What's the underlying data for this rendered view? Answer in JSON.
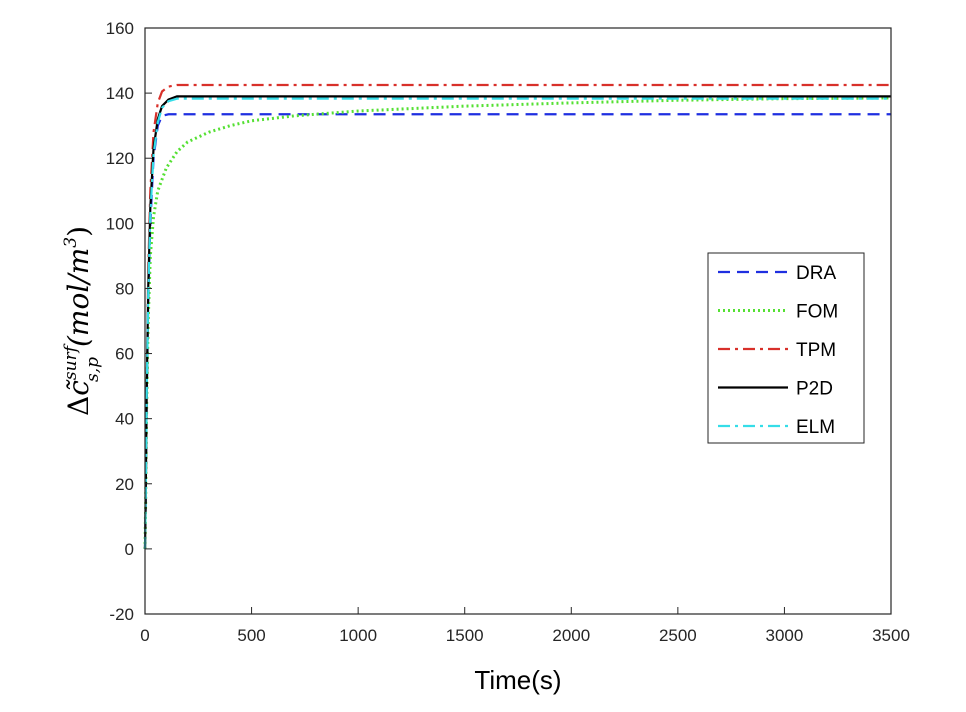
{
  "chart_data": {
    "type": "line",
    "title": "",
    "xlabel": "Time(s)",
    "ylabel": {
      "delta": "Δ",
      "c": "c̃",
      "sup": "surf",
      "sub": "s,p",
      "unit": "(mol/m",
      "unit_exp": "3",
      "unit_close": ")"
    },
    "xlim": [
      0,
      3500
    ],
    "ylim": [
      -20,
      160
    ],
    "xticks": [
      0,
      500,
      1000,
      1500,
      2000,
      2500,
      3000,
      3500
    ],
    "yticks": [
      -20,
      0,
      20,
      40,
      60,
      80,
      100,
      120,
      140,
      160
    ],
    "grid": false,
    "legend_position": "right",
    "series": [
      {
        "name": "DRA",
        "color": "#1f2fe0",
        "style": "dashed",
        "points": [
          [
            0,
            0
          ],
          [
            3,
            14
          ],
          [
            8,
            45
          ],
          [
            15,
            75
          ],
          [
            25,
            100
          ],
          [
            40,
            120
          ],
          [
            60,
            130
          ],
          [
            80,
            133
          ],
          [
            110,
            133.5
          ],
          [
            3500,
            133.5
          ]
        ]
      },
      {
        "name": "FOM",
        "color": "#55e033",
        "style": "dotted",
        "points": [
          [
            0,
            0
          ],
          [
            3,
            14
          ],
          [
            8,
            45
          ],
          [
            15,
            70
          ],
          [
            25,
            90
          ],
          [
            40,
            102
          ],
          [
            60,
            110
          ],
          [
            100,
            117
          ],
          [
            150,
            122
          ],
          [
            200,
            125
          ],
          [
            300,
            128
          ],
          [
            400,
            130
          ],
          [
            500,
            131.5
          ],
          [
            700,
            133
          ],
          [
            1000,
            134.5
          ],
          [
            1500,
            136
          ],
          [
            2000,
            137
          ],
          [
            2500,
            137.8
          ],
          [
            3000,
            138.3
          ],
          [
            3500,
            138.5
          ]
        ]
      },
      {
        "name": "TPM",
        "color": "#d8302a",
        "style": "dashdot",
        "points": [
          [
            0,
            0
          ],
          [
            3,
            14
          ],
          [
            8,
            50
          ],
          [
            15,
            85
          ],
          [
            25,
            110
          ],
          [
            40,
            128
          ],
          [
            60,
            137
          ],
          [
            80,
            140.5
          ],
          [
            110,
            142
          ],
          [
            150,
            142.5
          ],
          [
            3500,
            142.5
          ]
        ]
      },
      {
        "name": "P2D",
        "color": "#000000",
        "style": "solid",
        "points": [
          [
            0,
            0
          ],
          [
            3,
            14
          ],
          [
            8,
            48
          ],
          [
            15,
            80
          ],
          [
            25,
            105
          ],
          [
            40,
            123
          ],
          [
            60,
            132
          ],
          [
            80,
            136
          ],
          [
            110,
            138
          ],
          [
            150,
            139
          ],
          [
            3500,
            139
          ]
        ]
      },
      {
        "name": "ELM",
        "color": "#35dde8",
        "style": "dashdot",
        "points": [
          [
            0,
            0
          ],
          [
            3,
            14
          ],
          [
            8,
            47
          ],
          [
            15,
            78
          ],
          [
            25,
            103
          ],
          [
            40,
            121
          ],
          [
            60,
            131
          ],
          [
            80,
            135.5
          ],
          [
            110,
            137.5
          ],
          [
            150,
            138.3
          ],
          [
            3500,
            138.3
          ]
        ]
      }
    ]
  }
}
